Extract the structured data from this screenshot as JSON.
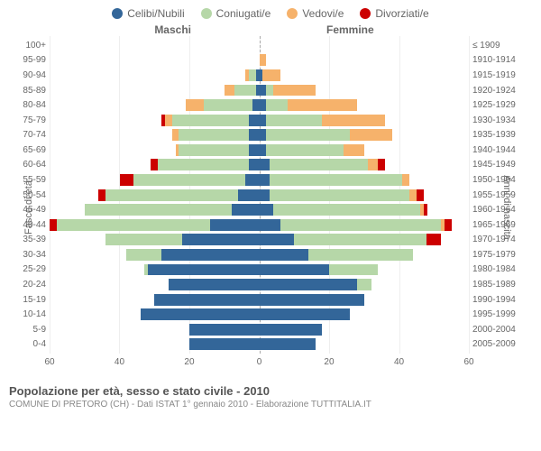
{
  "legend": [
    {
      "label": "Celibi/Nubili",
      "color": "#336699"
    },
    {
      "label": "Coniugati/e",
      "color": "#b6d7a8"
    },
    {
      "label": "Vedovi/e",
      "color": "#f6b26b"
    },
    {
      "label": "Divorziati/e",
      "color": "#cc0000"
    }
  ],
  "gender_labels": {
    "m": "Maschi",
    "f": "Femmine"
  },
  "axis_titles": {
    "left": "Fasce di età",
    "right": "Anni di nascita"
  },
  "x_max": 60,
  "x_ticks": [
    60,
    40,
    20,
    0,
    20,
    40,
    60
  ],
  "colors": {
    "celibi": "#336699",
    "coniugati": "#b6d7a8",
    "vedovi": "#f6b26b",
    "divorziati": "#cc0000",
    "grid": "#eeeeee",
    "center": "#aaaaaa",
    "background": "#ffffff"
  },
  "rows": [
    {
      "age": "100+",
      "birth": "≤ 1909",
      "m": {
        "c": 0,
        "co": 0,
        "v": 0,
        "d": 0
      },
      "f": {
        "c": 0,
        "co": 0,
        "v": 0,
        "d": 0
      }
    },
    {
      "age": "95-99",
      "birth": "1910-1914",
      "m": {
        "c": 0,
        "co": 0,
        "v": 0,
        "d": 0
      },
      "f": {
        "c": 0,
        "co": 0,
        "v": 2,
        "d": 0
      }
    },
    {
      "age": "90-94",
      "birth": "1915-1919",
      "m": {
        "c": 1,
        "co": 2,
        "v": 1,
        "d": 0
      },
      "f": {
        "c": 1,
        "co": 0,
        "v": 5,
        "d": 0
      }
    },
    {
      "age": "85-89",
      "birth": "1920-1924",
      "m": {
        "c": 1,
        "co": 6,
        "v": 3,
        "d": 0
      },
      "f": {
        "c": 2,
        "co": 2,
        "v": 12,
        "d": 0
      }
    },
    {
      "age": "80-84",
      "birth": "1925-1929",
      "m": {
        "c": 2,
        "co": 14,
        "v": 5,
        "d": 0
      },
      "f": {
        "c": 2,
        "co": 6,
        "v": 20,
        "d": 0
      }
    },
    {
      "age": "75-79",
      "birth": "1930-1934",
      "m": {
        "c": 3,
        "co": 22,
        "v": 2,
        "d": 1
      },
      "f": {
        "c": 2,
        "co": 16,
        "v": 18,
        "d": 0
      }
    },
    {
      "age": "70-74",
      "birth": "1935-1939",
      "m": {
        "c": 3,
        "co": 20,
        "v": 2,
        "d": 0
      },
      "f": {
        "c": 2,
        "co": 24,
        "v": 12,
        "d": 0
      }
    },
    {
      "age": "65-69",
      "birth": "1940-1944",
      "m": {
        "c": 3,
        "co": 20,
        "v": 1,
        "d": 0
      },
      "f": {
        "c": 2,
        "co": 22,
        "v": 6,
        "d": 0
      }
    },
    {
      "age": "60-64",
      "birth": "1945-1949",
      "m": {
        "c": 3,
        "co": 26,
        "v": 0,
        "d": 2
      },
      "f": {
        "c": 3,
        "co": 28,
        "v": 3,
        "d": 2
      }
    },
    {
      "age": "55-59",
      "birth": "1950-1954",
      "m": {
        "c": 4,
        "co": 32,
        "v": 0,
        "d": 4
      },
      "f": {
        "c": 3,
        "co": 38,
        "v": 2,
        "d": 0
      }
    },
    {
      "age": "50-54",
      "birth": "1955-1959",
      "m": {
        "c": 6,
        "co": 38,
        "v": 0,
        "d": 2
      },
      "f": {
        "c": 3,
        "co": 40,
        "v": 2,
        "d": 2
      }
    },
    {
      "age": "45-49",
      "birth": "1960-1964",
      "m": {
        "c": 8,
        "co": 42,
        "v": 0,
        "d": 0
      },
      "f": {
        "c": 4,
        "co": 42,
        "v": 1,
        "d": 1
      }
    },
    {
      "age": "40-44",
      "birth": "1965-1969",
      "m": {
        "c": 14,
        "co": 44,
        "v": 0,
        "d": 2
      },
      "f": {
        "c": 6,
        "co": 46,
        "v": 1,
        "d": 2
      }
    },
    {
      "age": "35-39",
      "birth": "1970-1974",
      "m": {
        "c": 22,
        "co": 22,
        "v": 0,
        "d": 0
      },
      "f": {
        "c": 10,
        "co": 38,
        "v": 0,
        "d": 4
      }
    },
    {
      "age": "30-34",
      "birth": "1975-1979",
      "m": {
        "c": 28,
        "co": 10,
        "v": 0,
        "d": 0
      },
      "f": {
        "c": 14,
        "co": 30,
        "v": 0,
        "d": 0
      }
    },
    {
      "age": "25-29",
      "birth": "1980-1984",
      "m": {
        "c": 32,
        "co": 1,
        "v": 0,
        "d": 0
      },
      "f": {
        "c": 20,
        "co": 14,
        "v": 0,
        "d": 0
      }
    },
    {
      "age": "20-24",
      "birth": "1985-1989",
      "m": {
        "c": 26,
        "co": 0,
        "v": 0,
        "d": 0
      },
      "f": {
        "c": 28,
        "co": 4,
        "v": 0,
        "d": 0
      }
    },
    {
      "age": "15-19",
      "birth": "1990-1994",
      "m": {
        "c": 30,
        "co": 0,
        "v": 0,
        "d": 0
      },
      "f": {
        "c": 30,
        "co": 0,
        "v": 0,
        "d": 0
      }
    },
    {
      "age": "10-14",
      "birth": "1995-1999",
      "m": {
        "c": 34,
        "co": 0,
        "v": 0,
        "d": 0
      },
      "f": {
        "c": 26,
        "co": 0,
        "v": 0,
        "d": 0
      }
    },
    {
      "age": "5-9",
      "birth": "2000-2004",
      "m": {
        "c": 20,
        "co": 0,
        "v": 0,
        "d": 0
      },
      "f": {
        "c": 18,
        "co": 0,
        "v": 0,
        "d": 0
      }
    },
    {
      "age": "0-4",
      "birth": "2005-2009",
      "m": {
        "c": 20,
        "co": 0,
        "v": 0,
        "d": 0
      },
      "f": {
        "c": 16,
        "co": 0,
        "v": 0,
        "d": 0
      }
    }
  ],
  "footer": {
    "title": "Popolazione per età, sesso e stato civile - 2010",
    "subtitle": "COMUNE DI PRETORO (CH) - Dati ISTAT 1° gennaio 2010 - Elaborazione TUTTITALIA.IT"
  }
}
